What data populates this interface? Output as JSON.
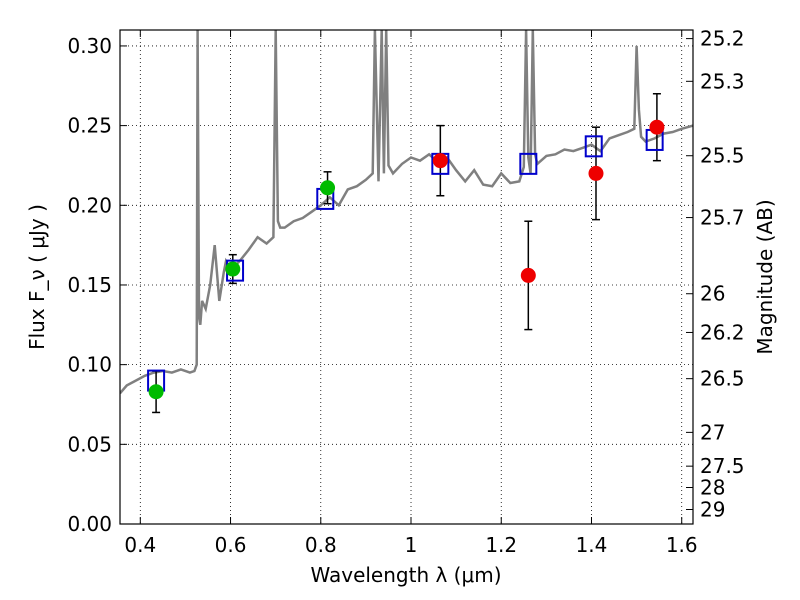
{
  "chart_data": {
    "type": "scatter",
    "xlabel": "Wavelength  λ (μm)",
    "ylabel": "Flux  F_ν ( μJy )",
    "y2label": "Magnitude (AB)",
    "xlim": [
      0.355,
      1.625
    ],
    "ylim": [
      0.0,
      0.31
    ],
    "grid": true,
    "grid_style": "dotted",
    "x_ticks": [
      0.4,
      0.6,
      0.8,
      1.0,
      1.2,
      1.4,
      1.6
    ],
    "x_tick_labels": [
      "0.4",
      "0.6",
      "0.8",
      "1",
      "1.2",
      "1.4",
      "1.6"
    ],
    "y_ticks": [
      0.0,
      0.05,
      0.1,
      0.15,
      0.2,
      0.25,
      0.3
    ],
    "y_tick_labels": [
      "0.00",
      "0.05",
      "0.10",
      "0.15",
      "0.20",
      "0.25",
      "0.30"
    ],
    "y2_ticks": [
      {
        "flux": 0.3046,
        "label": "25.2"
      },
      {
        "flux": 0.2778,
        "label": "25.3"
      },
      {
        "flux": 0.2311,
        "label": "25.5"
      },
      {
        "flux": 0.1923,
        "label": "25.7"
      },
      {
        "flux": 0.1445,
        "label": "26"
      },
      {
        "flux": 0.1202,
        "label": "26.2"
      },
      {
        "flux": 0.0912,
        "label": "26.5"
      },
      {
        "flux": 0.0575,
        "label": "27"
      },
      {
        "flux": 0.0363,
        "label": "27.5"
      },
      {
        "flux": 0.0229,
        "label": "28"
      },
      {
        "flux": 0.0091,
        "label": "29"
      }
    ],
    "colors": {
      "spectrum": "#808080",
      "model_box": "#0000cc",
      "green_point": "#00bb00",
      "red_point": "#ee0000",
      "errorbar": "#000000"
    },
    "series": [
      {
        "kind": "spectrum",
        "x": [
          0.355,
          0.37,
          0.39,
          0.41,
          0.43,
          0.45,
          0.47,
          0.49,
          0.51,
          0.52,
          0.525,
          0.527,
          0.53,
          0.533,
          0.537,
          0.545,
          0.555,
          0.565,
          0.575,
          0.585,
          0.59,
          0.6,
          0.61,
          0.62,
          0.64,
          0.66,
          0.68,
          0.695,
          0.7,
          0.705,
          0.71,
          0.72,
          0.74,
          0.76,
          0.78,
          0.8,
          0.82,
          0.84,
          0.86,
          0.88,
          0.9,
          0.915,
          0.92,
          0.928,
          0.935,
          0.94,
          0.945,
          0.95,
          0.96,
          0.98,
          1.0,
          1.02,
          1.04,
          1.06,
          1.08,
          1.1,
          1.12,
          1.14,
          1.16,
          1.18,
          1.2,
          1.22,
          1.24,
          1.25,
          1.255,
          1.26,
          1.265,
          1.27,
          1.275,
          1.28,
          1.3,
          1.32,
          1.34,
          1.36,
          1.38,
          1.4,
          1.42,
          1.44,
          1.46,
          1.48,
          1.495,
          1.5,
          1.505,
          1.51,
          1.52,
          1.54,
          1.56,
          1.58,
          1.6,
          1.625
        ],
        "y": [
          0.082,
          0.087,
          0.09,
          0.093,
          0.095,
          0.096,
          0.095,
          0.097,
          0.095,
          0.096,
          0.1,
          0.31,
          0.13,
          0.125,
          0.14,
          0.135,
          0.15,
          0.175,
          0.14,
          0.158,
          0.165,
          0.16,
          0.162,
          0.165,
          0.172,
          0.18,
          0.176,
          0.18,
          0.31,
          0.19,
          0.186,
          0.186,
          0.19,
          0.192,
          0.196,
          0.2,
          0.205,
          0.2,
          0.21,
          0.212,
          0.216,
          0.22,
          0.31,
          0.215,
          0.31,
          0.22,
          0.31,
          0.225,
          0.22,
          0.226,
          0.23,
          0.228,
          0.232,
          0.227,
          0.23,
          0.222,
          0.215,
          0.222,
          0.213,
          0.212,
          0.22,
          0.214,
          0.215,
          0.224,
          0.31,
          0.23,
          0.22,
          0.31,
          0.232,
          0.226,
          0.231,
          0.232,
          0.235,
          0.234,
          0.236,
          0.238,
          0.234,
          0.242,
          0.244,
          0.246,
          0.248,
          0.3,
          0.26,
          0.243,
          0.24,
          0.242,
          0.245,
          0.246,
          0.248,
          0.25
        ]
      },
      {
        "kind": "model_boxes",
        "x": [
          0.435,
          0.61,
          0.81,
          1.065,
          1.26,
          1.405,
          1.54
        ],
        "y": [
          0.09,
          0.159,
          0.204,
          0.226,
          0.226,
          0.237,
          0.241
        ]
      },
      {
        "kind": "green_points",
        "x": [
          0.435,
          0.605,
          0.815
        ],
        "y": [
          0.083,
          0.16,
          0.211
        ],
        "err": [
          0.013,
          0.009,
          0.01
        ]
      },
      {
        "kind": "red_points",
        "x": [
          1.065,
          1.26,
          1.41,
          1.545
        ],
        "y": [
          0.228,
          0.156,
          0.22,
          0.249
        ],
        "err": [
          0.022,
          0.034,
          0.029,
          0.021
        ]
      }
    ]
  }
}
